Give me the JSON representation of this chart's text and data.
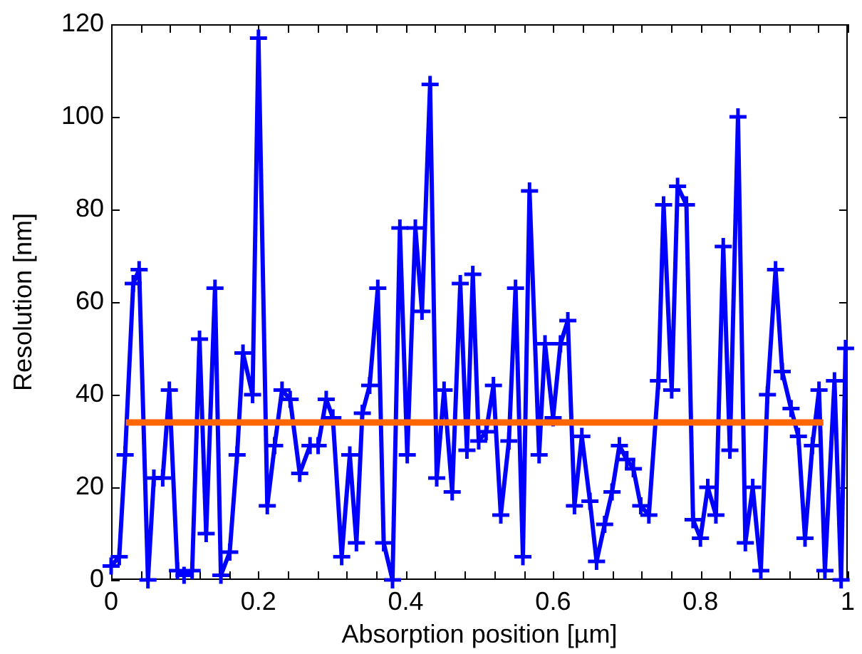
{
  "chart_data": {
    "type": "line",
    "xlabel": "Absorption position [µm]",
    "ylabel": "Resolution [nm]",
    "x": [
      0,
      0.011,
      0.019,
      0.03,
      0.038,
      0.05,
      0.058,
      0.07,
      0.079,
      0.09,
      0.099,
      0.11,
      0.12,
      0.129,
      0.141,
      0.149,
      0.161,
      0.171,
      0.179,
      0.192,
      0.2,
      0.212,
      0.222,
      0.232,
      0.243,
      0.256,
      0.27,
      0.281,
      0.292,
      0.301,
      0.313,
      0.324,
      0.333,
      0.341,
      0.351,
      0.362,
      0.37,
      0.382,
      0.392,
      0.402,
      0.413,
      0.422,
      0.433,
      0.442,
      0.452,
      0.463,
      0.474,
      0.483,
      0.491,
      0.499,
      0.509,
      0.519,
      0.529,
      0.54,
      0.549,
      0.559,
      0.568,
      0.581,
      0.589,
      0.6,
      0.61,
      0.62,
      0.629,
      0.639,
      0.65,
      0.659,
      0.67,
      0.68,
      0.69,
      0.7,
      0.709,
      0.719,
      0.73,
      0.743,
      0.75,
      0.761,
      0.769,
      0.781,
      0.79,
      0.8,
      0.81,
      0.821,
      0.831,
      0.84,
      0.851,
      0.861,
      0.871,
      0.882,
      0.891,
      0.902,
      0.911,
      0.923,
      0.933,
      0.942,
      0.952,
      0.961,
      0.969,
      0.982,
      0.991,
      0.997
    ],
    "series": [
      {
        "color": "#0000ff",
        "marker": "cross",
        "values": [
          3,
          5,
          27,
          64,
          67,
          0,
          22,
          22,
          41,
          2,
          1,
          2,
          52,
          10,
          63,
          1,
          6,
          27,
          49,
          40,
          117,
          16,
          29,
          41,
          39,
          23,
          29,
          29,
          39,
          35,
          5,
          27,
          8,
          36,
          42,
          63,
          8,
          0,
          76,
          27,
          76,
          58,
          107,
          22,
          41,
          19,
          64,
          28,
          66,
          30,
          32,
          42,
          14,
          30,
          63,
          5,
          84,
          27,
          51,
          35,
          51,
          56,
          16,
          31,
          17,
          4,
          12,
          19,
          29,
          26,
          24,
          16,
          14,
          43,
          81,
          41,
          85,
          81,
          13,
          9,
          20,
          14,
          72,
          28,
          100,
          8,
          20,
          2,
          40,
          67,
          45,
          37,
          31,
          9,
          29,
          41,
          2,
          43,
          0,
          50
        ]
      },
      {
        "color": "#ff6600",
        "marker": "none",
        "x": [
          0.02,
          0.967
        ],
        "values": [
          34,
          34
        ]
      }
    ],
    "xlim": [
      0,
      1
    ],
    "xticks": [
      0,
      {
        "value": 0.04,
        "label": null
      },
      {
        "value": 0.08,
        "label": null
      },
      {
        "value": 0.12,
        "label": null
      },
      {
        "value": 0.16,
        "label": null
      },
      0.2,
      {
        "value": 0.24,
        "label": null
      },
      {
        "value": 0.28,
        "label": null
      },
      {
        "value": 0.32,
        "label": null
      },
      {
        "value": 0.36,
        "label": null
      },
      0.4,
      {
        "value": 0.44,
        "label": null
      },
      {
        "value": 0.48,
        "label": null
      },
      {
        "value": 0.52,
        "label": null
      },
      {
        "value": 0.56,
        "label": null
      },
      0.6,
      {
        "value": 0.64,
        "label": null
      },
      {
        "value": 0.68,
        "label": null
      },
      {
        "value": 0.72,
        "label": null
      },
      {
        "value": 0.76,
        "label": null
      },
      0.8,
      {
        "value": 0.84,
        "label": null
      },
      {
        "value": 0.88,
        "label": null
      },
      {
        "value": 0.92,
        "label": null
      },
      {
        "value": 0.96,
        "label": null
      },
      1
    ],
    "ylim": [
      0,
      120
    ],
    "yticks": [
      0,
      20,
      40,
      60,
      80,
      100,
      120
    ]
  }
}
